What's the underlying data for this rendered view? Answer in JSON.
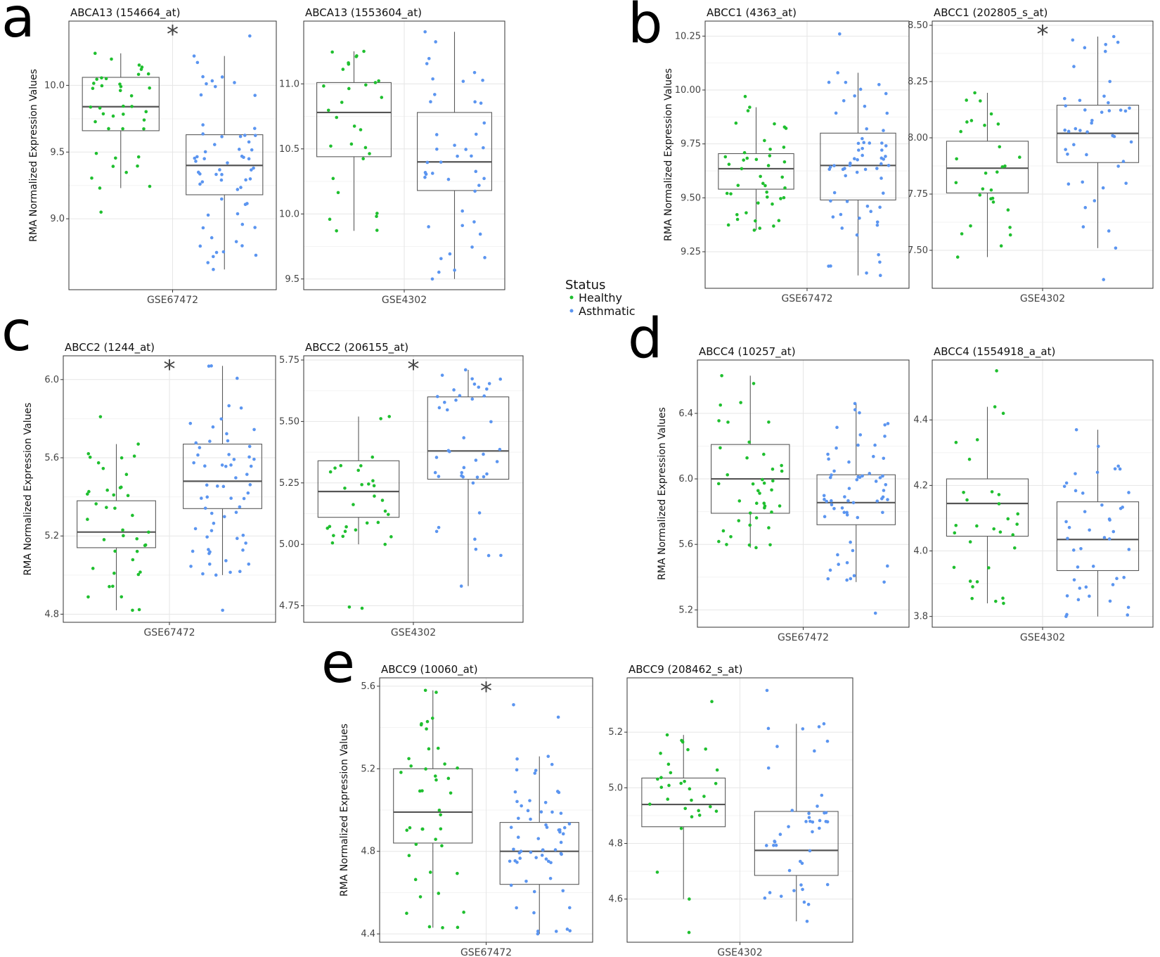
{
  "y_axis_title": "RMA Normalized Expression Values",
  "legend": {
    "title": "Status",
    "items": [
      {
        "label": "Healthy",
        "color": "#1fbf2f"
      },
      {
        "label": "Asthmatic",
        "color": "#5b95f0"
      }
    ]
  },
  "panel_letters": [
    "a",
    "b",
    "c",
    "d",
    "e"
  ],
  "significance_symbol": "*",
  "chart_data": [
    {
      "type": "boxplot",
      "panel": "a",
      "title": "ABCA13 (154664_at)",
      "xlabel": "GSE67472",
      "ylabel": "RMA Normalized Expression Values",
      "ylim": [
        8.5,
        10.45
      ],
      "yticks": [
        9.0,
        9.5,
        10.0
      ],
      "tick_labels": [
        "9.0",
        "9.5",
        "10.0"
      ],
      "significant": true,
      "series": [
        {
          "name": "Healthy",
          "min": 9.23,
          "q1": 9.66,
          "median": 9.84,
          "q3": 10.06,
          "max": 10.24,
          "n": 38,
          "outliers": [
            9.05
          ]
        },
        {
          "name": "Asthmatic",
          "min": 8.62,
          "q1": 9.18,
          "median": 9.4,
          "q3": 9.63,
          "max": 10.22,
          "n": 60,
          "outliers": [
            10.37
          ]
        }
      ]
    },
    {
      "type": "boxplot",
      "panel": "a",
      "title": "ABCA13 (1553604_at)",
      "xlabel": "GSE4302",
      "ylabel": "",
      "ylim": [
        9.45,
        11.45
      ],
      "yticks": [
        9.5,
        10.0,
        10.5,
        11.0
      ],
      "tick_labels": [
        "9.5",
        "10.0",
        "10.5",
        "11.0"
      ],
      "significant": false,
      "series": [
        {
          "name": "Healthy",
          "min": 9.87,
          "q1": 10.44,
          "median": 10.78,
          "q3": 11.01,
          "max": 11.25,
          "n": 28,
          "outliers": []
        },
        {
          "name": "Asthmatic",
          "min": 9.5,
          "q1": 10.18,
          "median": 10.4,
          "q3": 10.78,
          "max": 11.4,
          "n": 42,
          "outliers": []
        }
      ]
    },
    {
      "type": "boxplot",
      "panel": "b",
      "title": "ABCC1 (4363_at)",
      "xlabel": "GSE67472",
      "ylabel": "RMA Normalized Expression Values",
      "ylim": [
        9.1,
        10.3
      ],
      "yticks": [
        9.25,
        9.5,
        9.75,
        10.0,
        10.25
      ],
      "tick_labels": [
        "9.25",
        "9.50",
        "9.75",
        "10.00",
        "10.25"
      ],
      "significant": false,
      "series": [
        {
          "name": "Healthy",
          "min": 9.35,
          "q1": 9.54,
          "median": 9.635,
          "q3": 9.705,
          "max": 9.92,
          "n": 40,
          "outliers": [
            9.97
          ]
        },
        {
          "name": "Asthmatic",
          "min": 9.14,
          "q1": 9.49,
          "median": 9.65,
          "q3": 9.8,
          "max": 10.08,
          "n": 60,
          "outliers": [
            10.26
          ]
        }
      ]
    },
    {
      "type": "boxplot",
      "panel": "b",
      "title": "ABCC1 (202805_s_at)",
      "xlabel": "GSE4302",
      "ylabel": "",
      "ylim": [
        7.35,
        8.5
      ],
      "yticks": [
        7.5,
        7.75,
        8.0,
        8.25,
        8.5
      ],
      "tick_labels": [
        "7.50",
        "7.75",
        "8.00",
        "8.25",
        "8.50"
      ],
      "significant": true,
      "series": [
        {
          "name": "Healthy",
          "min": 7.47,
          "q1": 7.755,
          "median": 7.865,
          "q3": 7.985,
          "max": 8.2,
          "n": 28,
          "outliers": []
        },
        {
          "name": "Asthmatic",
          "min": 7.51,
          "q1": 7.89,
          "median": 8.02,
          "q3": 8.145,
          "max": 8.45,
          "n": 42,
          "outliers": [
            7.37
          ]
        }
      ]
    },
    {
      "type": "boxplot",
      "panel": "c",
      "title": "ABCC2 (1244_at)",
      "xlabel": "GSE67472",
      "ylabel": "RMA Normalized Expression Values",
      "ylim": [
        4.78,
        6.1
      ],
      "yticks": [
        4.8,
        5.2,
        5.6,
        6.0
      ],
      "tick_labels": [
        "4.8",
        "5.2",
        "5.6",
        "6.0"
      ],
      "significant": true,
      "series": [
        {
          "name": "Healthy",
          "min": 4.82,
          "q1": 5.14,
          "median": 5.22,
          "q3": 5.38,
          "max": 5.67,
          "n": 38,
          "outliers": [
            5.81
          ]
        },
        {
          "name": "Asthmatic",
          "min": 5.0,
          "q1": 5.34,
          "median": 5.48,
          "q3": 5.67,
          "max": 6.07,
          "n": 60,
          "outliers": [
            4.82
          ]
        }
      ]
    },
    {
      "type": "boxplot",
      "panel": "c",
      "title": "ABCC2 (206155_at)",
      "xlabel": "GSE4302",
      "ylabel": "",
      "ylim": [
        4.7,
        5.75
      ],
      "yticks": [
        4.75,
        5.0,
        5.25,
        5.5,
        5.75
      ],
      "tick_labels": [
        "4.75",
        "5.00",
        "5.25",
        "5.50",
        "5.75"
      ],
      "significant": true,
      "series": [
        {
          "name": "Healthy",
          "min": 5.0,
          "q1": 5.11,
          "median": 5.215,
          "q3": 5.34,
          "max": 5.52,
          "n": 28,
          "outliers": [
            4.745,
            4.74
          ]
        },
        {
          "name": "Asthmatic",
          "min": 4.83,
          "q1": 5.265,
          "median": 5.38,
          "q3": 5.6,
          "max": 5.71,
          "n": 42,
          "outliers": []
        }
      ]
    },
    {
      "type": "boxplot",
      "panel": "d",
      "title": "ABCC4 (10257_at)",
      "xlabel": "GSE67472",
      "ylabel": "RMA Normalized Expression Values",
      "ylim": [
        5.12,
        6.7
      ],
      "yticks": [
        5.2,
        5.6,
        6.0,
        6.4
      ],
      "tick_labels": [
        "5.2",
        "5.6",
        "6.0",
        "6.4"
      ],
      "significant": false,
      "series": [
        {
          "name": "Healthy",
          "min": 5.58,
          "q1": 5.79,
          "median": 6.0,
          "q3": 6.21,
          "max": 6.63,
          "n": 40,
          "outliers": []
        },
        {
          "name": "Asthmatic",
          "min": 5.37,
          "q1": 5.72,
          "median": 5.855,
          "q3": 6.025,
          "max": 6.46,
          "n": 60,
          "outliers": [
            5.18
          ]
        }
      ]
    },
    {
      "type": "boxplot",
      "panel": "d",
      "title": "ABCC4 (1554918_a_at)",
      "xlabel": "GSE4302",
      "ylabel": "",
      "ylim": [
        3.78,
        4.57
      ],
      "yticks": [
        3.8,
        4.0,
        4.2,
        4.4
      ],
      "tick_labels": [
        "3.8",
        "4.0",
        "4.2",
        "4.4"
      ],
      "significant": false,
      "series": [
        {
          "name": "Healthy",
          "min": 3.84,
          "q1": 4.045,
          "median": 4.145,
          "q3": 4.22,
          "max": 4.44,
          "n": 28,
          "outliers": [
            4.55
          ]
        },
        {
          "name": "Asthmatic",
          "min": 3.8,
          "q1": 3.94,
          "median": 4.035,
          "q3": 4.15,
          "max": 4.37,
          "n": 42,
          "outliers": []
        }
      ]
    },
    {
      "type": "boxplot",
      "panel": "e",
      "title": "ABCC9 (10060_at)",
      "xlabel": "GSE67472",
      "ylabel": "RMA Normalized Expression Values",
      "ylim": [
        4.38,
        5.62
      ],
      "yticks": [
        4.4,
        4.8,
        5.2,
        5.6
      ],
      "tick_labels": [
        "4.4",
        "4.8",
        "5.2",
        "5.6"
      ],
      "significant": true,
      "series": [
        {
          "name": "Healthy",
          "min": 4.43,
          "q1": 4.84,
          "median": 4.99,
          "q3": 5.2,
          "max": 5.58,
          "n": 40,
          "outliers": []
        },
        {
          "name": "Asthmatic",
          "min": 4.4,
          "q1": 4.64,
          "median": 4.8,
          "q3": 4.94,
          "max": 5.26,
          "n": 60,
          "outliers": [
            5.51,
            5.45
          ]
        }
      ]
    },
    {
      "type": "boxplot",
      "panel": "e",
      "title": "ABCC9 (208462_s_at)",
      "xlabel": "GSE4302",
      "ylabel": "",
      "ylim": [
        4.46,
        5.38
      ],
      "yticks": [
        4.6,
        4.8,
        5.0,
        5.2
      ],
      "tick_labels": [
        "4.6",
        "4.8",
        "5.0",
        "5.2"
      ],
      "significant": false,
      "series": [
        {
          "name": "Healthy",
          "min": 4.6,
          "q1": 4.86,
          "median": 4.94,
          "q3": 5.035,
          "max": 5.19,
          "n": 28,
          "outliers": [
            5.31,
            4.48
          ]
        },
        {
          "name": "Asthmatic",
          "min": 4.52,
          "q1": 4.685,
          "median": 4.775,
          "q3": 4.915,
          "max": 5.23,
          "n": 42,
          "outliers": [
            5.35
          ]
        }
      ]
    }
  ]
}
